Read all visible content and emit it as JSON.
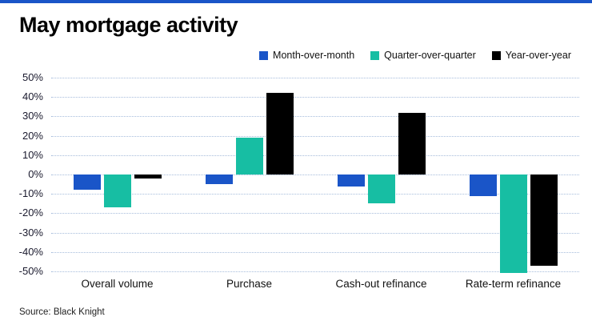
{
  "source": "Source: Black Knight",
  "accent_color": "#1a55c8",
  "chart_data": {
    "type": "bar",
    "title": "May mortgage activity",
    "categories": [
      "Overall volume",
      "Purchase",
      "Cash-out refinance",
      "Rate-term refinance"
    ],
    "series": [
      {
        "name": "Month-over-month",
        "color": "#1a55c8",
        "values": [
          -8,
          -5,
          -6,
          -11
        ]
      },
      {
        "name": "Quarter-over-quarter",
        "color": "#17bea3",
        "values": [
          -17,
          19,
          -15,
          -51
        ]
      },
      {
        "name": "Year-over-year",
        "color": "#000000",
        "values": [
          -2,
          42,
          32,
          -47
        ]
      }
    ],
    "ylabel": "",
    "xlabel": "",
    "ylim": [
      -50,
      50
    ],
    "ytick_step": 10,
    "ytick_format": "percent",
    "grid": "dotted-horizontal",
    "gridline_color": "#a7bddc",
    "legend_position": "top-right"
  }
}
